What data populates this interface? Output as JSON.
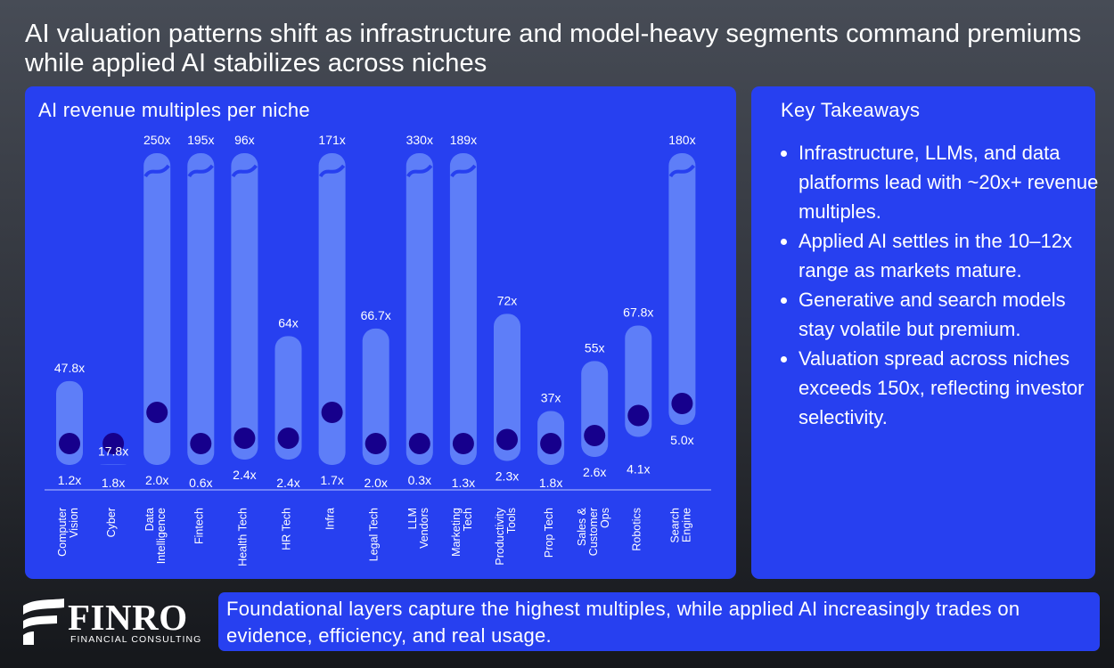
{
  "headline": "AI valuation patterns shift as infrastructure and model-heavy segments command premiums while applied AI stabilizes across niches",
  "colors": {
    "panel": "#2740f0",
    "bar": "#5e7ef8",
    "dot": "#16008c",
    "background_top": "#474c56",
    "background_bottom": "#15171b"
  },
  "chart_data": {
    "type": "range-bar",
    "title": "AI revenue multiples per niche",
    "unit": "x",
    "categories": [
      "Computer Vision",
      "Cyber",
      "Data Intelligence",
      "Fintech",
      "Health Tech",
      "HR Tech",
      "Infra",
      "Legal Tech",
      "LLM Vendors",
      "Marketing Tech",
      "Productivity Tools",
      "Prop Tech",
      "Sales & Customer Ops",
      "Robotics",
      "Search Engine"
    ],
    "category_lines": [
      [
        "Computer",
        "Vision"
      ],
      [
        "Cyber"
      ],
      [
        "Data",
        "Intelligence"
      ],
      [
        "Fintech"
      ],
      [
        "Health Tech"
      ],
      [
        "HR Tech"
      ],
      [
        "Infra"
      ],
      [
        "Legal Tech"
      ],
      [
        "LLM",
        "Vendors"
      ],
      [
        "Marketing",
        "Tech"
      ],
      [
        "Productivity",
        "Tools"
      ],
      [
        "Prop Tech"
      ],
      [
        "Sales &",
        "Customer",
        "Ops"
      ],
      [
        "Robotics"
      ],
      [
        "Search",
        "Engine"
      ]
    ],
    "max_labels": [
      "47.8x",
      "17.8x",
      "250x",
      "195x",
      "96x",
      "64x",
      "171x",
      "66.7x",
      "330x",
      "189x",
      "72x",
      "37x",
      "55x",
      "67.8x",
      "180x"
    ],
    "min_labels": [
      "1.2x",
      "1.8x",
      "2.0x",
      "0.6x",
      "2.4x",
      "2.4x",
      "1.7x",
      "2.0x",
      "0.3x",
      "1.3x",
      "2.3x",
      "1.8x",
      "2.6x",
      "4.1x",
      "5.0x"
    ],
    "max": [
      47.8,
      17.8,
      250,
      195,
      96,
      64,
      171,
      66.7,
      330,
      189,
      72,
      37,
      55,
      67.8,
      180
    ],
    "min": [
      1.2,
      1.8,
      2.0,
      0.6,
      2.4,
      2.4,
      1.7,
      2.0,
      0.3,
      1.3,
      2.3,
      1.8,
      2.6,
      4.1,
      5.0
    ],
    "axis_break": [
      false,
      false,
      true,
      true,
      true,
      false,
      true,
      false,
      true,
      true,
      false,
      false,
      false,
      false,
      true
    ],
    "dot_fraction": [
      0.0,
      0.0,
      0.1,
      0.0,
      0.0,
      0.0,
      0.1,
      0.0,
      0.0,
      0.0,
      0.0,
      0.0,
      0.0,
      0.0,
      0.0
    ]
  },
  "takeaways": {
    "title": "Key Takeaways",
    "items": [
      "Infrastructure, LLMs, and data platforms lead with ~20x+ revenue multiples.",
      "Applied AI settles in the 10–12x range as markets mature.",
      "Generative and search models stay volatile but premium.",
      "Valuation spread across niches exceeds 150x, reflecting investor selectivity."
    ]
  },
  "logo": {
    "name": "FINRO",
    "subtitle": "FINANCIAL CONSULTING"
  },
  "footer": {
    "text": "Foundational layers capture the highest multiples, while applied AI increasingly trades on evidence, efficiency, and real usage."
  }
}
